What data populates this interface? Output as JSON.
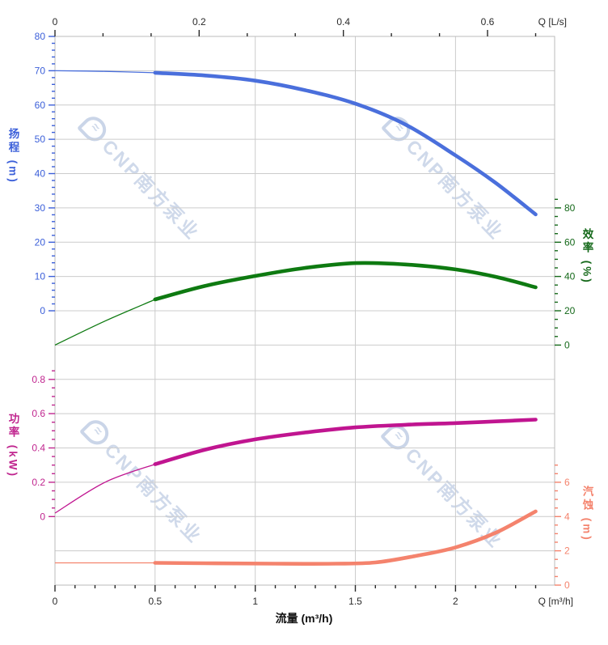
{
  "watermarks": {
    "logo_glyph": "≈",
    "text": "CNP南方泵业"
  },
  "chart_data": {
    "type": "line",
    "description": "Pump performance curves: head, efficiency, power, NPSH vs flow",
    "grid": "on",
    "x_axis_bottom": {
      "label": "Q [m³/h]",
      "title": "流量 (m³/h)",
      "min": 0,
      "max": 2.495,
      "major_ticks": [
        0,
        0.5,
        1,
        1.5,
        2
      ],
      "minor_step": 0.1,
      "color": "#2a2a2a"
    },
    "x_axis_top": {
      "label": "Q [L/s]",
      "major_ticks": [
        0,
        0.2,
        0.4,
        0.6
      ],
      "minor_divisions": 3,
      "unit_to_m3h": 3.6,
      "color": "#2a2a2a"
    },
    "y_axes": [
      {
        "id": "head",
        "title": "扬程 (m)",
        "side": "left",
        "color": "#3b5fd9",
        "major": [
          80,
          70,
          60,
          50,
          40,
          30,
          20,
          10,
          0
        ],
        "minor_step": 2,
        "minor_range": [
          0,
          80
        ],
        "unit_per_row": 10,
        "zero_row": 8,
        "range": [
          0,
          80
        ]
      },
      {
        "id": "efficiency",
        "title": "效率 (%)",
        "side": "right",
        "color": "#15691a",
        "major": [
          80,
          60,
          40,
          20,
          0
        ],
        "minor_step": 5,
        "minor_range": [
          0,
          85
        ],
        "unit_per_row": 20,
        "zero_row": 9,
        "range": [
          0,
          80
        ]
      },
      {
        "id": "power",
        "title": "功率 (kW)",
        "side": "left",
        "color": "#c0268f",
        "major": [
          0.8,
          0.6,
          0.4,
          0.2,
          0
        ],
        "minor_step": 0.05,
        "minor_range": [
          0,
          0.85
        ],
        "unit_per_row": 0.2,
        "zero_row": 14,
        "range": [
          0,
          0.8
        ]
      },
      {
        "id": "npsh",
        "title": "汽蚀 (m)",
        "side": "right",
        "color": "#f4836d",
        "major": [
          6,
          4,
          2,
          0
        ],
        "minor_step": 0.5,
        "minor_range": [
          0,
          7
        ],
        "unit_per_row": 2,
        "zero_row": 16,
        "range": [
          0,
          6
        ]
      }
    ],
    "series": [
      {
        "id": "head",
        "label": "扬程",
        "axis": "head",
        "color": "#4a6fdc",
        "thin": [
          [
            0,
            70
          ],
          [
            0.25,
            69.8
          ],
          [
            0.5,
            69.4
          ]
        ],
        "thick": [
          [
            0.5,
            69.4
          ],
          [
            0.75,
            68.6
          ],
          [
            1,
            67.1
          ],
          [
            1.25,
            64.3
          ],
          [
            1.5,
            60.4
          ],
          [
            1.75,
            54.3
          ],
          [
            2,
            45.3
          ],
          [
            2.2,
            37.3
          ],
          [
            2.4,
            28.1
          ]
        ]
      },
      {
        "id": "efficiency",
        "label": "效率",
        "axis": "efficiency",
        "color": "#0e7a11",
        "thin": [
          [
            0,
            0
          ],
          [
            0.25,
            14
          ],
          [
            0.5,
            26.6
          ]
        ],
        "thick": [
          [
            0.5,
            26.6
          ],
          [
            0.75,
            34.5
          ],
          [
            1,
            40.3
          ],
          [
            1.25,
            45
          ],
          [
            1.5,
            47.8
          ],
          [
            1.75,
            47
          ],
          [
            2,
            44.1
          ],
          [
            2.2,
            39.8
          ],
          [
            2.4,
            33.7
          ]
        ]
      },
      {
        "id": "power",
        "label": "功率",
        "axis": "power",
        "color": "#c01590",
        "thin": [
          [
            0,
            0.02
          ],
          [
            0.25,
            0.2
          ],
          [
            0.5,
            0.305
          ]
        ],
        "thick": [
          [
            0.5,
            0.305
          ],
          [
            0.75,
            0.39
          ],
          [
            1,
            0.45
          ],
          [
            1.25,
            0.49
          ],
          [
            1.5,
            0.52
          ],
          [
            1.75,
            0.535
          ],
          [
            2,
            0.545
          ],
          [
            2.2,
            0.555
          ],
          [
            2.4,
            0.565
          ]
        ]
      },
      {
        "id": "npsh",
        "label": "汽蚀",
        "axis": "npsh",
        "color": "#f4836d",
        "thin": [
          [
            0,
            1.3
          ],
          [
            0.25,
            1.3
          ],
          [
            0.5,
            1.3
          ]
        ],
        "thick": [
          [
            0.5,
            1.3
          ],
          [
            0.8,
            1.27
          ],
          [
            1.1,
            1.25
          ],
          [
            1.4,
            1.25
          ],
          [
            1.6,
            1.32
          ],
          [
            1.8,
            1.7
          ],
          [
            2,
            2.2
          ],
          [
            2.2,
            3.05
          ],
          [
            2.4,
            4.3
          ]
        ]
      }
    ]
  }
}
